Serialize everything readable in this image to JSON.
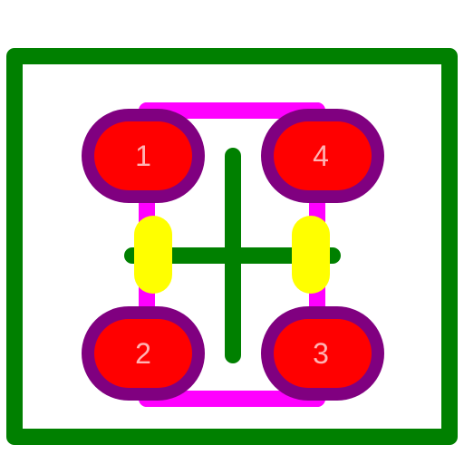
{
  "colors": {
    "background": "#ffffff",
    "board_outline": "#008000",
    "silkscreen": "#ff00ff",
    "pad_ring": "#800080",
    "pad_fill": "#ff0000",
    "pad_label": "#ffb3b3",
    "component": "#ffff00",
    "crosshair": "#008000"
  },
  "pads": [
    {
      "label": "1"
    },
    {
      "label": "4"
    },
    {
      "label": "2"
    },
    {
      "label": "3"
    }
  ]
}
